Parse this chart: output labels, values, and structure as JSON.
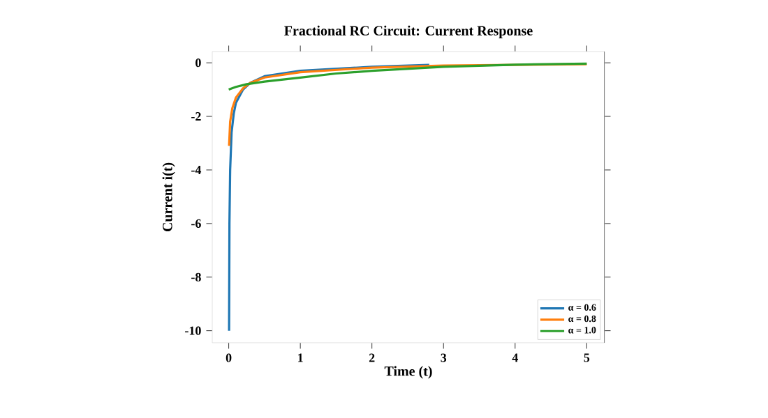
{
  "chart_data": {
    "type": "line",
    "title": "Fractional RC Circuit: Current Response",
    "xlabel": "Time (t)",
    "ylabel": "Current i(t)",
    "xlim": [
      -0.23,
      5.25
    ],
    "ylim": [
      -10.45,
      0.42
    ],
    "xticks": [
      0,
      1,
      2,
      3,
      4,
      5
    ],
    "yticks": [
      0,
      -2,
      -4,
      -6,
      -8,
      -10
    ],
    "legend": "bottom right",
    "grid": false,
    "series": [
      {
        "name": "α = 0.6",
        "color": "#1f77b4",
        "x": [
          0.005,
          0.01,
          0.02,
          0.04,
          0.07,
          0.1,
          0.2,
          0.3,
          0.5,
          1,
          2,
          2.8
        ],
        "values": [
          -10,
          -6,
          -4,
          -2.6,
          -1.9,
          -1.5,
          -1.0,
          -0.75,
          -0.5,
          -0.3,
          -0.15,
          -0.08
        ]
      },
      {
        "name": "α = 0.8",
        "color": "#ff7f0e",
        "x": [
          0.005,
          0.02,
          0.05,
          0.1,
          0.2,
          0.3,
          0.5,
          1,
          2,
          3,
          5
        ],
        "values": [
          -3.1,
          -2.2,
          -1.7,
          -1.3,
          -0.95,
          -0.75,
          -0.55,
          -0.35,
          -0.18,
          -0.1,
          -0.05
        ]
      },
      {
        "name": "α = 1.0",
        "color": "#2ca02c",
        "x": [
          0,
          0.1,
          0.25,
          0.5,
          1,
          1.5,
          2,
          3,
          4,
          5
        ],
        "values": [
          -1,
          -0.9,
          -0.8,
          -0.7,
          -0.55,
          -0.4,
          -0.3,
          -0.15,
          -0.07,
          -0.03
        ]
      }
    ]
  }
}
